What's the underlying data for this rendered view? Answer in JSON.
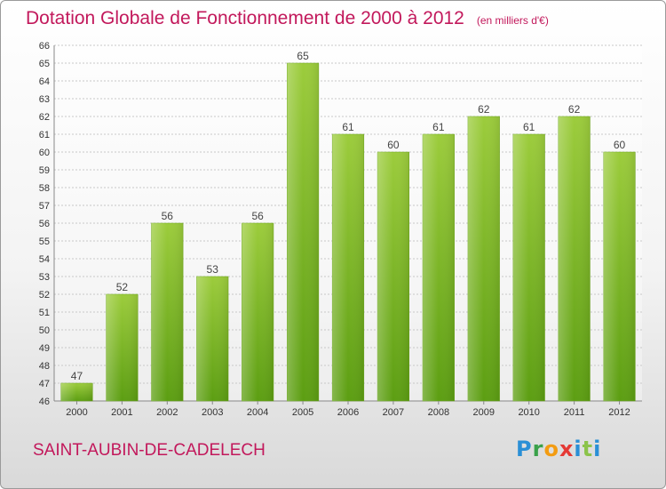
{
  "header": {
    "title": "Dotation Globale de Fonctionnement de 2000 à 2012",
    "subtitle": "(en milliers d'€)"
  },
  "footer": {
    "city": "SAINT-AUBIN-DE-CADELECH",
    "logo": "Proxiti"
  },
  "colors": {
    "title": "#c2185b",
    "bar_top": "#9ccc3c",
    "bar_bottom": "#5c9e12",
    "grid": "#c8c8c8"
  },
  "chart_data": {
    "type": "bar",
    "title": "Dotation Globale de Fonctionnement de 2000 à 2012",
    "subtitle": "(en milliers d'€)",
    "xlabel": "",
    "ylabel": "",
    "categories": [
      "2000",
      "2001",
      "2002",
      "2003",
      "2004",
      "2005",
      "2006",
      "2007",
      "2008",
      "2009",
      "2010",
      "2011",
      "2012"
    ],
    "values": [
      47,
      52,
      56,
      53,
      56,
      65,
      61,
      60,
      61,
      62,
      61,
      62,
      60
    ],
    "ylim": [
      46,
      66
    ],
    "yticks": [
      46,
      47,
      48,
      49,
      50,
      51,
      52,
      53,
      54,
      55,
      56,
      57,
      58,
      59,
      60,
      61,
      62,
      63,
      64,
      65,
      66
    ],
    "grid": true,
    "data_labels": true
  }
}
